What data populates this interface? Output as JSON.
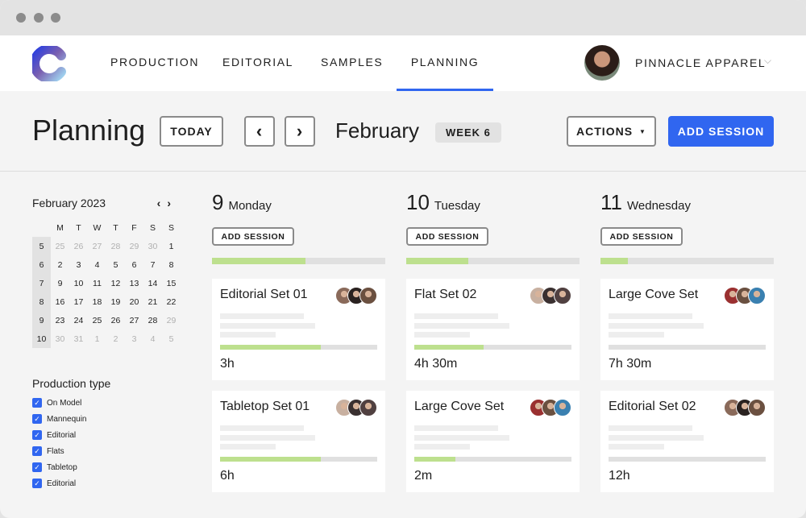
{
  "nav": {
    "items": [
      {
        "label": "PRODUCTION"
      },
      {
        "label": "EDITORIAL"
      },
      {
        "label": "SAMPLES"
      },
      {
        "label": "PLANNING",
        "active": true
      }
    ],
    "company": "PINNACLE APPAREL"
  },
  "header": {
    "title": "Planning",
    "today": "TODAY",
    "prev": "‹",
    "next": "›",
    "month": "February",
    "week": "WEEK 6",
    "actions": "ACTIONS",
    "add_session": "ADD SESSION"
  },
  "accent": "#3066f0",
  "progress_color": "#bde08e",
  "mini_calendar": {
    "title": "February 2023",
    "weekdays": [
      "M",
      "T",
      "W",
      "T",
      "F",
      "S",
      "S"
    ],
    "weeks": [
      {
        "wk": "5",
        "days": [
          "25",
          "26",
          "27",
          "28",
          "29",
          "30",
          "1"
        ],
        "dim": [
          0,
          1,
          2,
          3,
          4,
          5
        ]
      },
      {
        "wk": "6",
        "days": [
          "2",
          "3",
          "4",
          "5",
          "6",
          "7",
          "8"
        ],
        "dim": []
      },
      {
        "wk": "7",
        "days": [
          "9",
          "10",
          "11",
          "12",
          "13",
          "14",
          "15"
        ],
        "dim": []
      },
      {
        "wk": "8",
        "days": [
          "16",
          "17",
          "18",
          "19",
          "20",
          "21",
          "22"
        ],
        "dim": []
      },
      {
        "wk": "9",
        "days": [
          "23",
          "24",
          "25",
          "26",
          "27",
          "28",
          "29"
        ],
        "dim": [
          6
        ]
      },
      {
        "wk": "10",
        "days": [
          "30",
          "31",
          "1",
          "2",
          "3",
          "4",
          "5"
        ],
        "dim": [
          0,
          1,
          2,
          3,
          4,
          5,
          6
        ]
      }
    ]
  },
  "filters": {
    "title": "Production type",
    "items": [
      {
        "label": "On Model",
        "checked": true
      },
      {
        "label": "Mannequin",
        "checked": true
      },
      {
        "label": "Editorial",
        "checked": true
      },
      {
        "label": "Flats",
        "checked": true
      },
      {
        "label": "Tabletop",
        "checked": true
      },
      {
        "label": "Editorial",
        "checked": true
      }
    ]
  },
  "days": [
    {
      "num": "9",
      "name": "Monday",
      "button": "ADD SESSION",
      "progress": 0.54,
      "sessions": [
        {
          "title": "Editorial Set  01",
          "duration": "3h",
          "progress": 0.64
        },
        {
          "title": "Tabletop Set 01",
          "duration": "6h",
          "progress": 0.64
        }
      ]
    },
    {
      "num": "10",
      "name": "Tuesday",
      "button": "ADD SESSION",
      "progress": 0.36,
      "sessions": [
        {
          "title": "Flat Set 02",
          "duration": "4h 30m",
          "progress": 0.44
        },
        {
          "title": "Large Cove Set",
          "duration": "2m",
          "progress": 0.26
        }
      ]
    },
    {
      "num": "11",
      "name": "Wednesday",
      "button": "ADD SESSION",
      "progress": 0.16,
      "sessions": [
        {
          "title": "Large Cove Set",
          "duration": "7h 30m",
          "progress": 0
        },
        {
          "title": "Editorial Set 02",
          "duration": "12h",
          "progress": 0
        }
      ]
    }
  ]
}
